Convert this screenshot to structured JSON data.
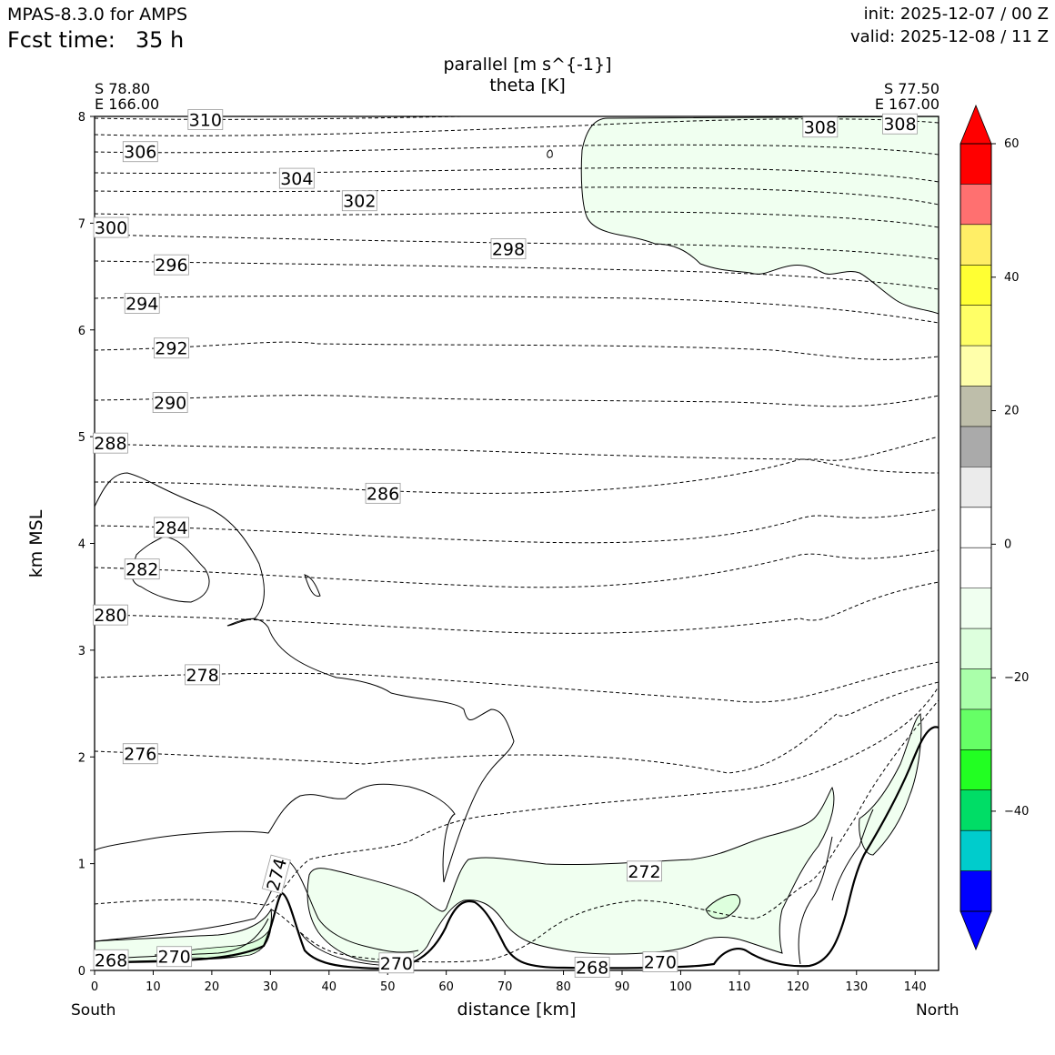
{
  "header": {
    "model": "MPAS-8.3.0 for AMPS",
    "fcst_label": "Fcst time:",
    "fcst_value": "35 h",
    "init": "init: 2025-12-07 / 00 Z",
    "valid": "valid: 2025-12-08 / 11 Z"
  },
  "chart_data": {
    "type": "cross-section contour",
    "title_line1": "parallel [m s^{-1}]",
    "title_line2": "theta [K]",
    "start_point": {
      "lat": "S 78.80",
      "lon": "E 166.00"
    },
    "end_point": {
      "lat": "S 77.50",
      "lon": "E 167.00"
    },
    "xlabel": "distance [km]",
    "ylabel": "km MSL",
    "x_left_label": "South",
    "x_right_label": "North",
    "xlim": [
      0,
      144
    ],
    "ylim": [
      0,
      8
    ],
    "xticks": [
      0,
      10,
      20,
      30,
      40,
      50,
      60,
      70,
      80,
      90,
      100,
      110,
      120,
      130,
      140
    ],
    "yticks": [
      0,
      1,
      2,
      3,
      4,
      5,
      6,
      7,
      8
    ],
    "colorbar": {
      "levels": [
        -50,
        -45,
        -40,
        -35,
        -30,
        -25,
        -20,
        -15,
        -10,
        -5,
        0,
        5,
        10,
        15,
        20,
        25,
        30,
        35,
        40,
        45,
        50,
        55
      ],
      "colors": [
        "#0000ff",
        "#00cccc",
        "#00dd66",
        "#22ff22",
        "#66ff66",
        "#aaffaa",
        "#ddffdd",
        "#f0fff0",
        "#ffffff",
        "#ffffff",
        "#ebebeb",
        "#aaaaaa",
        "#bebeaa",
        "#ffffaa",
        "#ffff66",
        "#ffff33",
        "#ffee66",
        "#ff7070",
        "#ff0000"
      ],
      "extend_low_color": "#0000ff",
      "extend_high_color": "#ff0000",
      "tick_labels": [
        "60",
        "40",
        "20",
        "0",
        "−20",
        "−40"
      ],
      "tick_values": [
        60,
        40,
        20,
        0,
        -20,
        -40
      ]
    },
    "theta_labels": [
      {
        "text": "310",
        "x": 18.9,
        "y": 7.97
      },
      {
        "text": "308",
        "x": 123.8,
        "y": 7.9
      },
      {
        "text": "308",
        "x": 137.4,
        "y": 7.93
      },
      {
        "text": "306",
        "x": 7.8,
        "y": 7.67
      },
      {
        "text": "304",
        "x": 34.5,
        "y": 7.42
      },
      {
        "text": "302",
        "x": 45.2,
        "y": 7.21
      },
      {
        "text": "300",
        "x": 2.8,
        "y": 6.96
      },
      {
        "text": "298",
        "x": 70.6,
        "y": 6.76
      },
      {
        "text": "296",
        "x": 13.1,
        "y": 6.61
      },
      {
        "text": "294",
        "x": 8.1,
        "y": 6.25
      },
      {
        "text": "292",
        "x": 13.1,
        "y": 5.83
      },
      {
        "text": "290",
        "x": 12.9,
        "y": 5.32
      },
      {
        "text": "288",
        "x": 2.7,
        "y": 4.94
      },
      {
        "text": "286",
        "x": 49.2,
        "y": 4.47
      },
      {
        "text": "284",
        "x": 13.1,
        "y": 4.15
      },
      {
        "text": "282",
        "x": 8.1,
        "y": 3.76
      },
      {
        "text": "280",
        "x": 2.7,
        "y": 3.33
      },
      {
        "text": "278",
        "x": 18.4,
        "y": 2.77
      },
      {
        "text": "276",
        "x": 7.8,
        "y": 2.03
      },
      {
        "text": "274",
        "x": 31.0,
        "y": 0.9
      },
      {
        "text": "272",
        "x": 93.8,
        "y": 0.93
      },
      {
        "text": "270",
        "x": 13.6,
        "y": 0.13
      },
      {
        "text": "270",
        "x": 51.5,
        "y": 0.07
      },
      {
        "text": "270",
        "x": 96.5,
        "y": 0.08
      },
      {
        "text": "268",
        "x": 2.8,
        "y": 0.1
      },
      {
        "text": "268",
        "x": 84.9,
        "y": 0.03
      }
    ]
  }
}
